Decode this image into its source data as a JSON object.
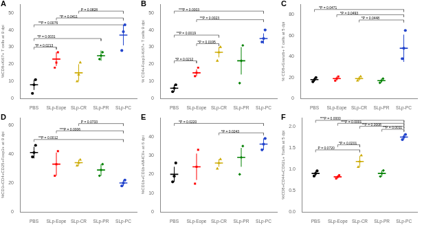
{
  "chart_data": [
    {
      "type": "strip",
      "title": "A",
      "y_label": "%CD8+Ki67+ T cells at 9 dpi",
      "categories": [
        "PBS",
        "SLp-Eope",
        "SLp-CR",
        "SLp-PR",
        "SLp-PC"
      ],
      "colors": [
        "black",
        "red",
        "#ccaa00",
        "green",
        "#2244cc"
      ],
      "markers": [
        "circle",
        "square",
        "triangle",
        "diamond",
        "circle"
      ],
      "values": [
        8,
        23,
        15,
        25,
        37
      ],
      "errors": [
        3,
        4,
        5,
        3,
        6
      ],
      "points": [
        [
          3,
          8,
          11
        ],
        [
          18,
          21,
          27
        ],
        [
          10,
          14,
          21
        ],
        [
          23,
          25,
          27
        ],
        [
          28,
          39,
          43
        ]
      ],
      "annotations": [
        {
          "from": "PBS",
          "to": "SLp-Eope",
          "y": 30,
          "label": "*P = 0.0213"
        },
        {
          "from": "PBS",
          "to": "SLp-PR",
          "y": 35,
          "label": "*P = 0.0031"
        },
        {
          "from": "PBS",
          "to": "SLp-PC",
          "y": 43,
          "label": "**P = 0.0076"
        },
        {
          "from": "SLp-Eope",
          "to": "SLp-PC",
          "y": 47,
          "label": "*P = 0.0411"
        },
        {
          "from": "SLp-CR",
          "to": "SLp-PC",
          "y": 51,
          "label": "P = 0.0828"
        }
      ],
      "ylim": [
        0,
        55
      ],
      "yticks": [
        0,
        10,
        20,
        30,
        40,
        50
      ],
      "grid": false
    },
    {
      "type": "strip",
      "title": "B",
      "y_label": "% CD4+Foxp3-Ki67+ T cells 9 dpi",
      "categories": [
        "PBS",
        "SLp-Eope",
        "SLp-CR",
        "SLp-PR",
        "SLp-PC"
      ],
      "colors": [
        "black",
        "red",
        "#ccaa00",
        "green",
        "#2244cc"
      ],
      "markers": [
        "circle",
        "square",
        "triangle",
        "diamond",
        "circle"
      ],
      "values": [
        6,
        15,
        27,
        22,
        35
      ],
      "errors": [
        2,
        2,
        3,
        8,
        3
      ],
      "points": [
        [
          4,
          6,
          8
        ],
        [
          13,
          15,
          18
        ],
        [
          22,
          27,
          30
        ],
        [
          9,
          22,
          31
        ],
        [
          33,
          35,
          40
        ]
      ],
      "annotations": [
        {
          "from": "PBS",
          "to": "SLp-Eope",
          "y": 22,
          "label": "*P = 0.0212"
        },
        {
          "from": "SLp-Eope",
          "to": "SLp-CR",
          "y": 32,
          "label": "*P = 0.0195"
        },
        {
          "from": "PBS",
          "to": "SLp-CR",
          "y": 37,
          "label": "**P = 0.0019"
        },
        {
          "from": "SLp-Eope",
          "to": "SLp-PC",
          "y": 46,
          "label": "**P = 0.0023"
        },
        {
          "from": "PBS",
          "to": "SLp-PC",
          "y": 51,
          "label": "***P = 0.0003"
        }
      ],
      "ylim": [
        0,
        55
      ],
      "yticks": [
        0,
        10,
        20,
        30,
        40,
        50
      ],
      "grid": false
    },
    {
      "type": "strip",
      "title": "C",
      "y_label": "% CD8+Granzb+ T cells at 5 dpi",
      "categories": [
        "PBS",
        "SLp-Eope",
        "SLp-CR",
        "SLp-PR",
        "SLp-PC"
      ],
      "colors": [
        "black",
        "red",
        "#ccaa00",
        "green",
        "#2244cc"
      ],
      "markers": [
        "circle",
        "square",
        "triangle",
        "diamond",
        "circle"
      ],
      "values": [
        18,
        19,
        19,
        17,
        48
      ],
      "errors": [
        2,
        2,
        2,
        2,
        13
      ],
      "points": [
        [
          16,
          18,
          20
        ],
        [
          17,
          19,
          21
        ],
        [
          17,
          19,
          21
        ],
        [
          15,
          17,
          19
        ],
        [
          38,
          48,
          65
        ]
      ],
      "annotations": [
        {
          "from": "SLp-CR",
          "to": "SLp-PC",
          "y": 75,
          "label": "*P = 0.0448"
        },
        {
          "from": "SLp-Eope",
          "to": "SLp-PC",
          "y": 80,
          "label": "*P = 0.0493"
        },
        {
          "from": "PBS",
          "to": "SLp-PC",
          "y": 85,
          "label": "*P = 0.0471"
        }
      ],
      "ylim": [
        0,
        90
      ],
      "yticks": [
        0,
        20,
        40,
        60,
        80
      ],
      "grid": false
    },
    {
      "type": "strip",
      "title": "D",
      "y_label": "%CD3+CD4+CD25+Foxp3+ at 9 dpi",
      "categories": [
        "PBS",
        "SLp-Eope",
        "SLp-CR",
        "SLp-PR",
        "SLp-PC"
      ],
      "colors": [
        "black",
        "red",
        "#ccaa00",
        "green",
        "#2244cc"
      ],
      "markers": [
        "circle",
        "square",
        "triangle",
        "diamond",
        "circle"
      ],
      "values": [
        41,
        33,
        34,
        29,
        20
      ],
      "errors": [
        4,
        8,
        2,
        4,
        2
      ],
      "points": [
        [
          38,
          41,
          46
        ],
        [
          25,
          33,
          42
        ],
        [
          32,
          34,
          36
        ],
        [
          25,
          29,
          33
        ],
        [
          18,
          20,
          22
        ]
      ],
      "annotations": [
        {
          "from": "PBS",
          "to": "SLp-PC",
          "y": 50,
          "label": "**P = 0.0012"
        },
        {
          "from": "SLp-Eope",
          "to": "SLp-PC",
          "y": 56,
          "label": "***P = 0.0006"
        },
        {
          "from": "SLp-CR",
          "to": "SLp-PC",
          "y": 61,
          "label": "P = 0.0733"
        }
      ],
      "ylim": [
        0,
        65
      ],
      "yticks": [
        0,
        20,
        40,
        60
      ],
      "grid": false
    },
    {
      "type": "strip",
      "title": "E",
      "y_label": "%CD1b+CD1b+MHCII+ at 6 dpi",
      "categories": [
        "PBS",
        "SLp-Eope",
        "SLp-CR",
        "SLp-PR",
        "SLp-PC"
      ],
      "colors": [
        "black",
        "red",
        "#ccaa00",
        "green",
        "#2244cc"
      ],
      "markers": [
        "circle",
        "square",
        "triangle",
        "diamond",
        "circle"
      ],
      "values": [
        20,
        24,
        26,
        29,
        36
      ],
      "errors": [
        4,
        7,
        2,
        5,
        3
      ],
      "points": [
        [
          16,
          19,
          26
        ],
        [
          15,
          24,
          33
        ],
        [
          23,
          26,
          28
        ],
        [
          20,
          29,
          35
        ],
        [
          33,
          36,
          39
        ]
      ],
      "annotations": [
        {
          "from": "SLp-CR",
          "to": "SLp-PC",
          "y": 42,
          "label": "*P = 0.0243"
        },
        {
          "from": "PBS",
          "to": "SLp-PC",
          "y": 47,
          "label": "*P = 0.0220"
        }
      ],
      "ylim": [
        0,
        50
      ],
      "yticks": [
        0,
        10,
        20,
        30,
        40
      ],
      "grid": false
    },
    {
      "type": "strip",
      "title": "F",
      "y_label": "%CD8+CD44+CD62L+ Tcells at 5 dpi",
      "categories": [
        "PBS",
        "SLp-Eope",
        "SLp-CR",
        "SLp-PR",
        "SLp-PC"
      ],
      "colors": [
        "black",
        "red",
        "#ccaa00",
        "green",
        "#2244cc"
      ],
      "markers": [
        "circle",
        "square",
        "triangle",
        "diamond",
        "circle"
      ],
      "values": [
        0.9,
        0.82,
        1.18,
        0.9,
        1.75
      ],
      "errors": [
        0.06,
        0.04,
        0.13,
        0.07,
        0.06
      ],
      "points": [
        [
          0.84,
          0.9,
          0.96
        ],
        [
          0.78,
          0.82,
          0.86
        ],
        [
          1.05,
          1.18,
          1.32
        ],
        [
          0.83,
          0.9,
          0.97
        ],
        [
          1.69,
          1.75,
          1.81
        ]
      ],
      "annotations": [
        {
          "from": "PBS",
          "to": "SLp-CR",
          "y": 1.45,
          "label": "P = 0.0720"
        },
        {
          "from": "SLp-Eope",
          "to": "SLp-CR",
          "y": 1.57,
          "label": "*P = 0.0201"
        },
        {
          "from": "SLp-PR",
          "to": "SLp-PC",
          "y": 1.93,
          "label": "**P = 0.0011"
        },
        {
          "from": "SLp-CR",
          "to": "SLp-PC",
          "y": 2.0,
          "label": "**P = 0.0008"
        },
        {
          "from": "SLp-Eope",
          "to": "SLp-PC",
          "y": 2.07,
          "label": "***P = 0.0001"
        },
        {
          "from": "PBS",
          "to": "SLp-PC",
          "y": 2.14,
          "label": "***P = 0.0000"
        }
      ],
      "ylim": [
        0.0,
        2.2
      ],
      "yticks": [
        {
          "value": 0.0,
          "label": "0.0"
        },
        0.5,
        {
          "value": 1.0,
          "label": "1.0"
        },
        1.5,
        {
          "value": 2.0,
          "label": "2.0"
        }
      ],
      "grid": false
    }
  ]
}
